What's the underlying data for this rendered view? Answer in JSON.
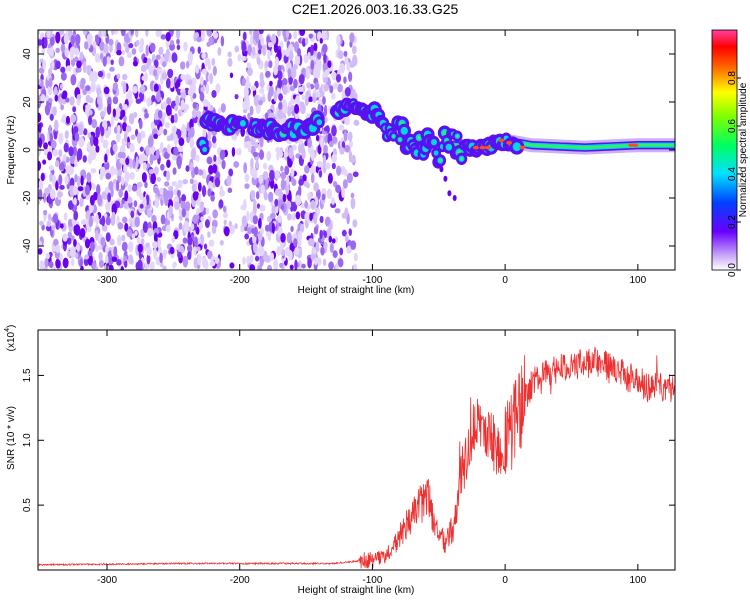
{
  "title": "C2E1.2026.003.16.33.G25",
  "chart_data": [
    {
      "type": "heatmap",
      "name": "spectrogram",
      "xlabel": "Height of straight line (km)",
      "ylabel": "Frequency (Hz)",
      "xlim": [
        -352,
        128
      ],
      "ylim": [
        -50,
        50
      ],
      "xticks": [
        -300,
        -200,
        -100,
        0,
        100
      ],
      "yticks": [
        -40,
        -20,
        0,
        20,
        40
      ],
      "colorbar": {
        "label": "Normalized spectral amplitude",
        "range": [
          0,
          1
        ],
        "ticks": [
          "0.0",
          "0.2",
          "0.4",
          "0.6",
          "0.8"
        ],
        "tick_values": [
          0,
          0.2,
          0.4,
          0.6,
          0.8
        ]
      },
      "ridge": {
        "description_points": [
          [
            -225,
            12
          ],
          [
            -200,
            10
          ],
          [
            -170,
            8
          ],
          [
            -150,
            9
          ],
          [
            -120,
            18
          ],
          [
            -100,
            16
          ],
          [
            -85,
            8
          ],
          [
            -70,
            3
          ],
          [
            -55,
            0
          ],
          [
            -40,
            2
          ],
          [
            -20,
            1
          ],
          [
            0,
            4
          ],
          [
            20,
            2
          ],
          [
            60,
            1
          ],
          [
            100,
            2
          ],
          [
            128,
            2
          ]
        ]
      }
    },
    {
      "type": "line",
      "name": "snr",
      "xlabel": "Height of straight line (km)",
      "ylabel": "SNR (10 * v/v)",
      "yscale_label": "(x10",
      "yscale_exp": "4",
      "xlim": [
        -352,
        128
      ],
      "ylim": [
        0,
        1.85
      ],
      "xticks": [
        -300,
        -200,
        -100,
        0,
        100
      ],
      "yticks": [
        0.5,
        1.0,
        1.5
      ],
      "ytick_labels": [
        "0.5",
        "1.0",
        "1.5"
      ],
      "series": [
        {
          "name": "SNR",
          "color": "#ee3030",
          "anchors_x": [
            -352,
            -250,
            -130,
            -100,
            -85,
            -75,
            -65,
            -58,
            -52,
            -45,
            -38,
            -32,
            -26,
            -20,
            -15,
            -10,
            -5,
            0,
            5,
            10,
            15,
            22,
            30,
            40,
            50,
            60,
            70,
            80,
            90,
            100,
            110,
            120,
            128
          ],
          "anchors_y": [
            0.04,
            0.05,
            0.05,
            0.08,
            0.15,
            0.35,
            0.5,
            0.55,
            0.3,
            0.2,
            0.35,
            0.8,
            1.0,
            1.2,
            1.1,
            1.0,
            0.9,
            0.95,
            1.1,
            1.25,
            1.35,
            1.45,
            1.5,
            1.55,
            1.55,
            1.6,
            1.6,
            1.55,
            1.5,
            1.45,
            1.4,
            1.4,
            1.42
          ]
        }
      ]
    }
  ]
}
